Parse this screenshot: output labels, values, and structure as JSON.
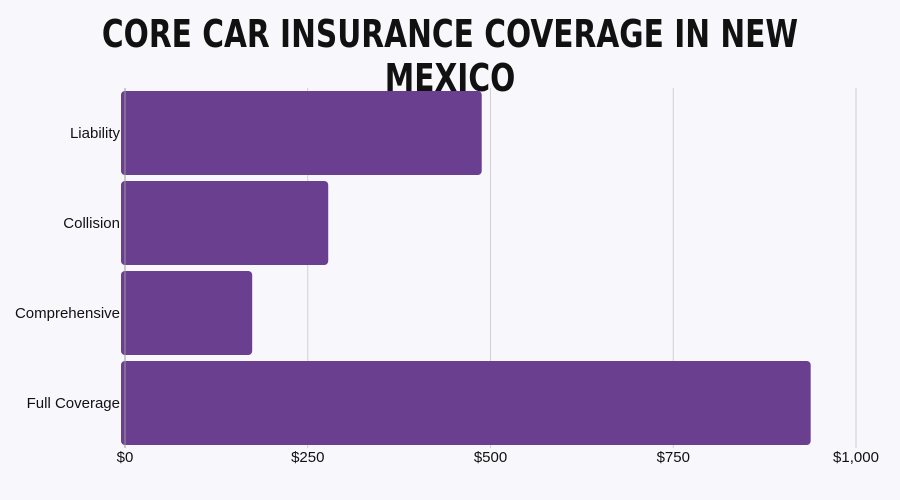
{
  "chart_data": {
    "type": "bar",
    "orientation": "horizontal",
    "title": "CORE CAR INSURANCE COVERAGE IN NEW MEXICO",
    "categories": [
      "Liability",
      "Collision",
      "Comprehensive",
      "Full Coverage"
    ],
    "values": [
      488,
      278,
      174,
      938
    ],
    "xlim": [
      0,
      1000
    ],
    "xticks": [
      0,
      250,
      500,
      750,
      1000
    ],
    "xtick_labels": [
      "$0",
      "$250",
      "$500",
      "$750",
      "$1,000"
    ],
    "grid": true,
    "bar_color": "#6a3f8f"
  }
}
